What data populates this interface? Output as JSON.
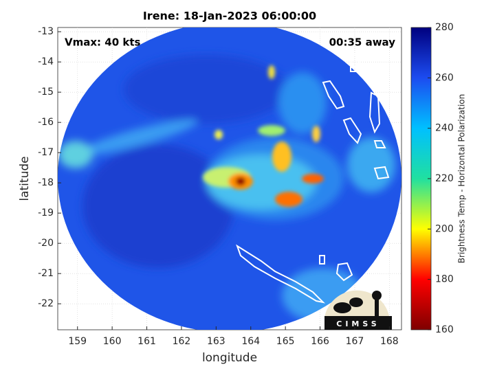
{
  "chart_data": {
    "type": "image",
    "title": "Irene: 18-Jan-2023 06:00:00",
    "x_label": "longitude",
    "y_label": "latitude",
    "xlim": [
      158.43,
      168.35
    ],
    "ylim": [
      -22.86,
      -12.86
    ],
    "xticks": [
      159,
      160,
      161,
      162,
      163,
      164,
      165,
      166,
      167,
      168
    ],
    "yticks": [
      -22,
      -21,
      -20,
      -19,
      -18,
      -17,
      -16,
      -15,
      -14,
      -13
    ],
    "grid": true,
    "annotations": [
      "Vmax: 40 kts",
      "00:35 away"
    ],
    "colorbar": {
      "label": "Brightness Temp - Horizontal Polarization",
      "lim": [
        160,
        280
      ],
      "ticks": [
        160,
        180,
        200,
        220,
        240,
        260,
        280
      ],
      "colors": [
        "#7f0000",
        "#ff0000",
        "#ffff00",
        "#20e0a0",
        "#00c0ff",
        "#1c4cf0",
        "#00007f"
      ]
    },
    "logo_text": "CIMSS"
  }
}
